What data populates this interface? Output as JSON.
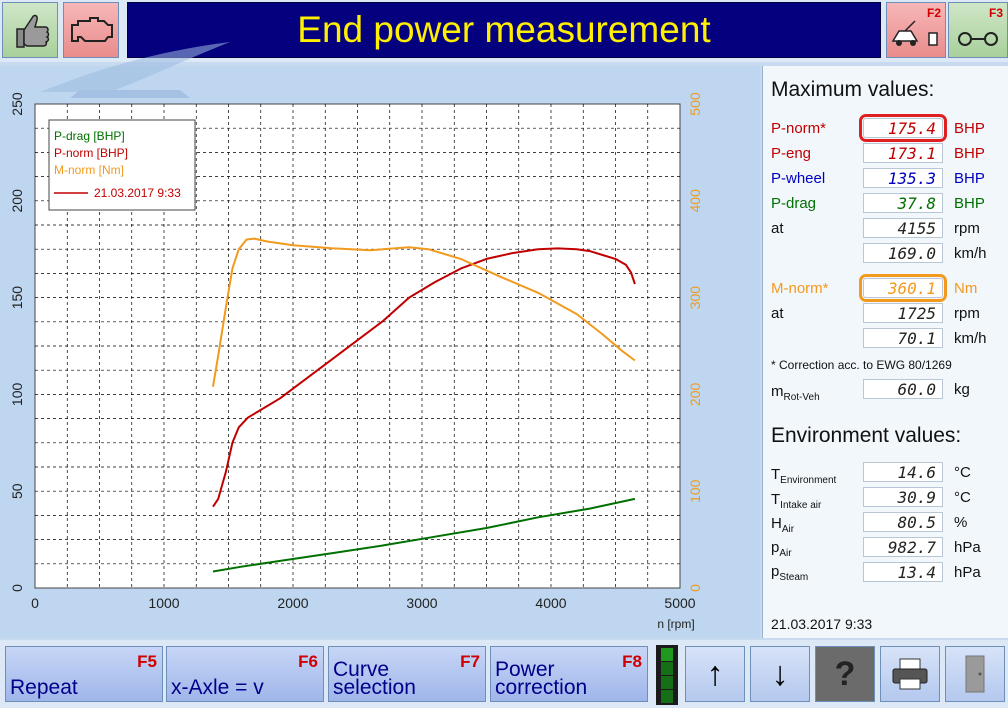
{
  "header": {
    "title": "End power measurement",
    "f2_label": "F2",
    "f3_label": "F3"
  },
  "colors": {
    "p_drag": "#007000",
    "p_norm": "#c00000",
    "m_norm": "#f29a1e",
    "p_wheel": "#0000c0",
    "title_bg": "#04007e",
    "title_text": "#fff000"
  },
  "chart_data": {
    "type": "line",
    "xlabel": "n [rpm]",
    "x_ticks": [
      "0",
      "1000",
      "2000",
      "3000",
      "4000",
      "5000"
    ],
    "y_left_ticks": [
      "0",
      "50",
      "100",
      "150",
      "200",
      "250"
    ],
    "y_right_ticks": [
      "0",
      "100",
      "200",
      "300",
      "400",
      "500"
    ],
    "xlim": [
      0,
      5000
    ],
    "ylim_left": [
      0,
      250
    ],
    "ylim_right": [
      0,
      500
    ],
    "grid": true,
    "legend_placement": "top-left",
    "legend": [
      "P-drag [BHP]",
      "P-norm [BHP]",
      "M-norm [Nm]"
    ],
    "legend_date": "21.03.2017 9:33",
    "series": [
      {
        "name": "P-drag [BHP]",
        "axis": "left",
        "x": [
          1380,
          1600,
          1900,
          2300,
          2700,
          3100,
          3500,
          3900,
          4300,
          4650
        ],
        "y": [
          8.5,
          11,
          14,
          18,
          22,
          26.5,
          31,
          36.5,
          41,
          46
        ]
      },
      {
        "name": "P-norm [BHP]",
        "axis": "left",
        "x": [
          1380,
          1420,
          1480,
          1530,
          1580,
          1650,
          1750,
          1900,
          2100,
          2300,
          2500,
          2700,
          2900,
          3100,
          3300,
          3500,
          3700,
          3900,
          4050,
          4200,
          4300,
          4400,
          4500,
          4580,
          4620,
          4650
        ],
        "y": [
          42,
          46,
          60,
          75,
          83,
          88,
          92,
          98,
          108,
          118,
          128,
          138,
          150,
          158,
          165,
          170,
          173,
          175,
          175.4,
          175,
          174,
          172,
          170,
          167,
          163,
          157
        ]
      },
      {
        "name": "M-norm [Nm]",
        "axis": "right",
        "x": [
          1380,
          1420,
          1480,
          1530,
          1580,
          1640,
          1700,
          1800,
          2000,
          2300,
          2600,
          2900,
          3050,
          3300,
          3600,
          3900,
          4200,
          4400,
          4550,
          4650
        ],
        "y": [
          208,
          240,
          290,
          330,
          350,
          360,
          361,
          358,
          354,
          351,
          349,
          352,
          350,
          340,
          322,
          305,
          283,
          262,
          245,
          235
        ]
      }
    ]
  },
  "right": {
    "max_title": "Maximum values:",
    "rows": [
      {
        "label": "P-norm*",
        "value": "175.4",
        "unit": "BHP"
      },
      {
        "label": "P-eng",
        "value": "173.1",
        "unit": "BHP"
      },
      {
        "label": "P-wheel",
        "value": "135.3",
        "unit": "BHP"
      },
      {
        "label": "P-drag",
        "value": "37.8",
        "unit": "BHP"
      },
      {
        "label": "at",
        "value": "4155",
        "unit": "rpm"
      },
      {
        "label": "",
        "value": "169.0",
        "unit": "km/h"
      },
      {
        "label": "M-norm*",
        "value": "360.1",
        "unit": "Nm"
      },
      {
        "label": "at",
        "value": "1725",
        "unit": "rpm"
      },
      {
        "label": "",
        "value": "70.1",
        "unit": "km/h"
      }
    ],
    "note": "* Correction acc. to EWG 80/1269",
    "mrot": {
      "label": "m",
      "sub": "Rot-Veh",
      "value": "60.0",
      "unit": "kg"
    },
    "env_title": "Environment values:",
    "env": [
      {
        "label": "T",
        "sub": "Environment",
        "value": "14.6",
        "unit": "°C"
      },
      {
        "label": "T",
        "sub": "Intake air",
        "value": "30.9",
        "unit": "°C"
      },
      {
        "label": "H",
        "sub": "Air",
        "value": "80.5",
        "unit": "%"
      },
      {
        "label": "p",
        "sub": "Air",
        "value": "982.7",
        "unit": "hPa"
      },
      {
        "label": "p",
        "sub": "Steam",
        "value": "13.4",
        "unit": "hPa"
      }
    ],
    "datetime": "21.03.2017   9:33"
  },
  "footer": {
    "repeat": {
      "label": "Repeat",
      "key": "F5"
    },
    "xaxle": {
      "label": "x-Axle = v",
      "key": "F6"
    },
    "curve": {
      "label1": "Curve",
      "label2": "selection",
      "key": "F7"
    },
    "power": {
      "label1": "Power",
      "label2": "correction",
      "key": "F8"
    },
    "up": "↑",
    "down": "↓",
    "help": "?"
  }
}
